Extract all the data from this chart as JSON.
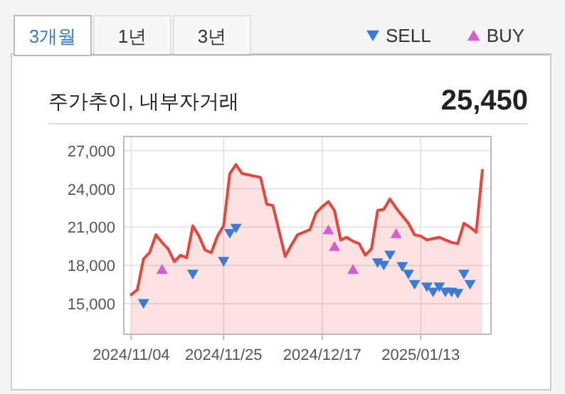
{
  "chart_data": {
    "type": "area",
    "title": "주가추이, 내부자거래",
    "subtitle": "25,450",
    "annotations": [
      "3개월",
      "1년",
      "3년"
    ],
    "categories": [
      "2024/11/04",
      null,
      null,
      null,
      null,
      null,
      null,
      null,
      null,
      null,
      null,
      null,
      null,
      null,
      null,
      "2024/11/25",
      null,
      null,
      null,
      null,
      null,
      null,
      null,
      null,
      null,
      null,
      null,
      null,
      null,
      null,
      null,
      "2024/12/17",
      null,
      null,
      null,
      null,
      null,
      null,
      null,
      null,
      null,
      null,
      null,
      null,
      null,
      null,
      null,
      "2025/01/13",
      null,
      null,
      null,
      null,
      null,
      null,
      null,
      null,
      null,
      null
    ],
    "ylim": [
      12600,
      28100
    ],
    "yticks": [
      {
        "value": 15000,
        "label": "15,000"
      },
      {
        "value": 18000,
        "label": "18,000"
      },
      {
        "value": 21000,
        "label": "21,000"
      },
      {
        "value": 24000,
        "label": "24,000"
      },
      {
        "value": 27000,
        "label": "27,000"
      }
    ],
    "grid": true,
    "legend": "top right",
    "series": [
      {
        "color": "#e8453c",
        "values": [
          15700,
          16100,
          18500,
          19000,
          20400,
          19800,
          19300,
          18300,
          18800,
          18600,
          21100,
          20300,
          19200,
          19000,
          20300,
          21100,
          25200,
          25900,
          25200,
          25100,
          25000,
          24900,
          22800,
          22700,
          20700,
          18700,
          19600,
          20400,
          20600,
          20800,
          22100,
          22600,
          23000,
          22300,
          20000,
          20200,
          19900,
          19700,
          18800,
          19300,
          22300,
          22400,
          23200,
          22500,
          21900,
          21300,
          20400,
          20300,
          20000,
          20100,
          20200,
          20000,
          19800,
          19700,
          21300,
          21000,
          20600,
          25450
        ]
      },
      {
        "type": "scatter",
        "name": "SELL",
        "color": "#3a7bd5",
        "marker": "triangle-down",
        "values": [
          null,
          null,
          15000,
          null,
          null,
          null,
          null,
          null,
          null,
          null,
          17300,
          null,
          null,
          null,
          null,
          18300,
          20500,
          20900,
          null,
          null,
          null,
          null,
          null,
          null,
          null,
          null,
          null,
          null,
          null,
          null,
          null,
          null,
          null,
          null,
          null,
          null,
          null,
          null,
          null,
          null,
          18200,
          18000,
          18800,
          null,
          17900,
          17300,
          16500,
          null,
          16300,
          15900,
          16300,
          15900,
          15900,
          15800,
          17300,
          16500,
          null,
          null
        ]
      },
      {
        "type": "scatter",
        "name": "BUY",
        "color": "#d65ccf",
        "marker": "triangle",
        "values": [
          null,
          null,
          null,
          null,
          null,
          17700,
          null,
          null,
          null,
          null,
          null,
          null,
          null,
          null,
          null,
          null,
          null,
          null,
          null,
          null,
          null,
          null,
          null,
          null,
          null,
          null,
          null,
          null,
          null,
          null,
          null,
          null,
          20800,
          19500,
          null,
          null,
          17700,
          null,
          null,
          null,
          null,
          null,
          null,
          20500,
          null,
          null,
          null,
          null,
          null,
          null,
          null,
          null,
          null,
          null,
          null,
          null,
          null,
          null
        ]
      }
    ]
  }
}
